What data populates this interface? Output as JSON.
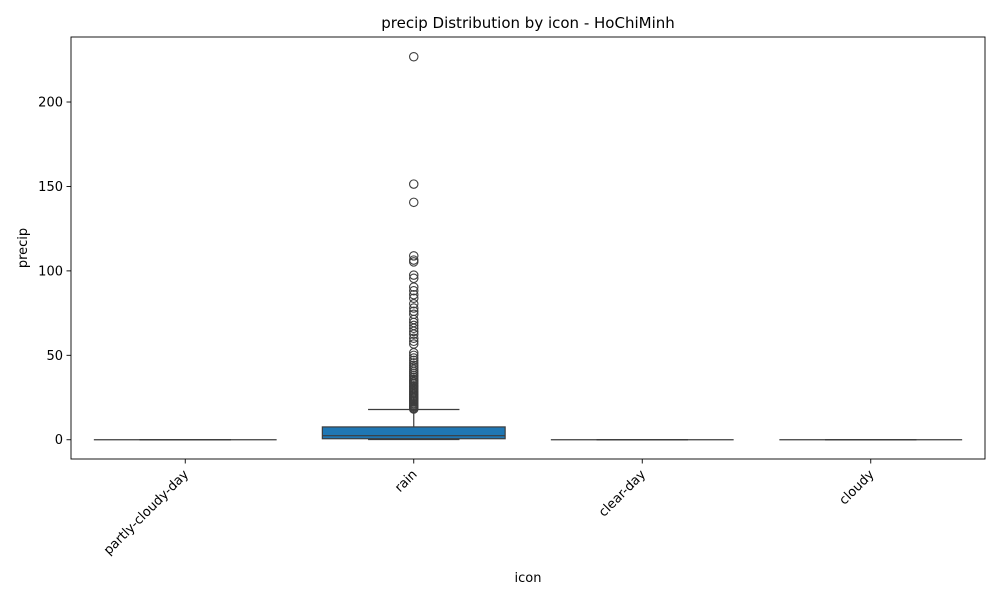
{
  "chart_data": {
    "type": "box",
    "title": "precip Distribution by icon - HoChiMinh",
    "xlabel": "icon",
    "ylabel": "precip",
    "ylim": [
      -11.4,
      238.5
    ],
    "yticks": [
      0,
      50,
      100,
      150,
      200
    ],
    "grid": false,
    "legend": "none",
    "box_color": "#1f77b4",
    "line_color": "#3d3d3d",
    "categories": [
      "partly-cloudy-day",
      "rain",
      "clear-day",
      "cloudy"
    ],
    "series": [
      {
        "category": "partly-cloudy-day",
        "whislo": 0,
        "q1": 0,
        "med": 0,
        "q3": 0,
        "whishi": 0,
        "fliers": []
      },
      {
        "category": "rain",
        "whislo": 0.1,
        "q1": 0.6,
        "med": 2.4,
        "q3": 7.6,
        "whishi": 17.9,
        "fliers": [
          18.2,
          18.9,
          19.6,
          20.3,
          21.1,
          21.8,
          22.6,
          23.3,
          24.1,
          24.8,
          25.6,
          26.4,
          27.2,
          28.1,
          28.9,
          29.8,
          30.6,
          31.5,
          32.4,
          33.3,
          34.2,
          35.1,
          36.0,
          37.1,
          38.2,
          39.4,
          40.5,
          41.7,
          42.9,
          44.1,
          45.5,
          47.0,
          48.4,
          50.0,
          51.5,
          56.7,
          58.3,
          60.1,
          62.5,
          64.2,
          66.0,
          67.7,
          69.4,
          71.2,
          74.3,
          76.1,
          78.0,
          80.5,
          83.8,
          85.9,
          88.2,
          90.4,
          95.6,
          97.5,
          105.3,
          106.4,
          108.9,
          140.6,
          151.4,
          226.8
        ]
      },
      {
        "category": "clear-day",
        "whislo": 0,
        "q1": 0,
        "med": 0,
        "q3": 0,
        "whishi": 0,
        "fliers": []
      },
      {
        "category": "cloudy",
        "whislo": 0,
        "q1": 0,
        "med": 0,
        "q3": 0,
        "whishi": 0,
        "fliers": []
      }
    ]
  }
}
